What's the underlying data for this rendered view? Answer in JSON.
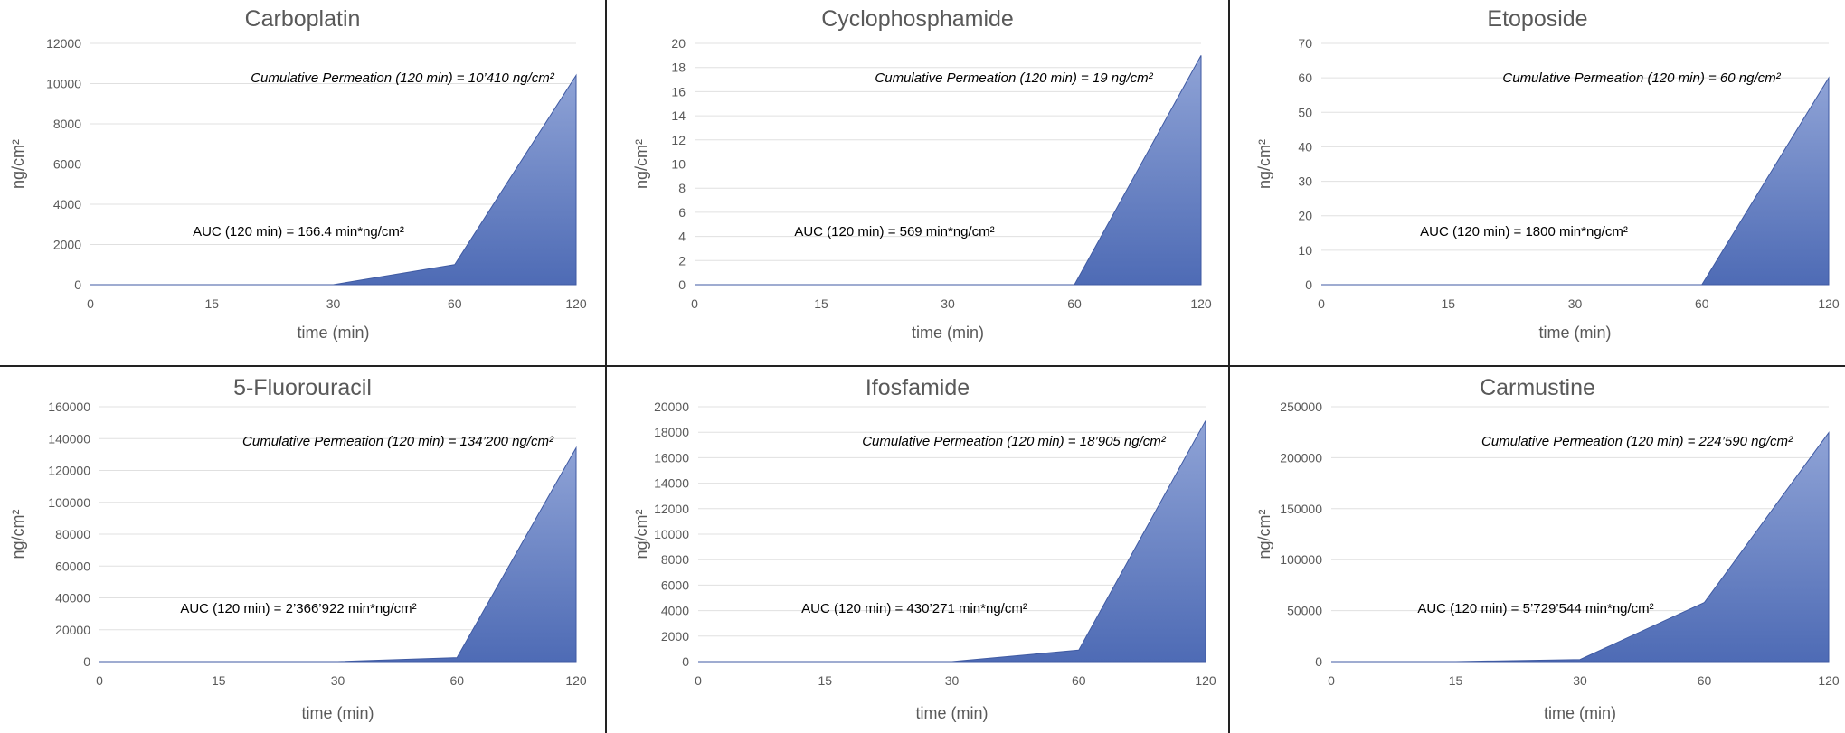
{
  "colors": {
    "area_top": "#8fa3d6",
    "area_bottom": "#4e6bb5",
    "grid": "#e0e0e0",
    "axis": "#bfbfbf",
    "text": "#595959"
  },
  "chart_data": [
    {
      "type": "area",
      "title": "Carboplatin",
      "xlabel": "time (min)",
      "ylabel": "ng/cm²",
      "categories": [
        "0",
        "15",
        "30",
        "60",
        "120"
      ],
      "values": [
        0,
        0,
        0,
        1000,
        10410
      ],
      "ylim": [
        0,
        12000
      ],
      "ytick_step": 2000,
      "grid": true,
      "cumulative_label": "Cumulative Permeation (120 min) = 10’410 ng/cm²",
      "auc_label": "AUC (120 min) = 166.4 min*ng/cm²"
    },
    {
      "type": "area",
      "title": "Cyclophosphamide",
      "xlabel": "time (min)",
      "ylabel": "ng/cm²",
      "categories": [
        "0",
        "15",
        "30",
        "60",
        "120"
      ],
      "values": [
        0,
        0,
        0,
        0,
        19
      ],
      "ylim": [
        0,
        20
      ],
      "ytick_step": 2,
      "grid": true,
      "cumulative_label": "Cumulative Permeation (120 min) = 19 ng/cm²",
      "auc_label": "AUC (120 min) = 569 min*ng/cm²"
    },
    {
      "type": "area",
      "title": "Etoposide",
      "xlabel": "time (min)",
      "ylabel": "ng/cm²",
      "categories": [
        "0",
        "15",
        "30",
        "60",
        "120"
      ],
      "values": [
        0,
        0,
        0,
        0,
        60
      ],
      "ylim": [
        0,
        70
      ],
      "ytick_step": 10,
      "grid": true,
      "cumulative_label": "Cumulative Permeation (120 min) = 60 ng/cm²",
      "auc_label": "AUC (120 min) = 1800 min*ng/cm²"
    },
    {
      "type": "area",
      "title": "5-Fluorouracil",
      "xlabel": "time (min)",
      "ylabel": "ng/cm²",
      "categories": [
        "0",
        "15",
        "30",
        "60",
        "120"
      ],
      "values": [
        0,
        0,
        0,
        2500,
        134200
      ],
      "ylim": [
        0,
        160000
      ],
      "ytick_step": 20000,
      "grid": true,
      "cumulative_label": "Cumulative Permeation (120 min) = 134’200 ng/cm²",
      "auc_label": "AUC (120 min) = 2’366’922 min*ng/cm²"
    },
    {
      "type": "area",
      "title": "Ifosfamide",
      "xlabel": "time (min)",
      "ylabel": "ng/cm²",
      "categories": [
        "0",
        "15",
        "30",
        "60",
        "120"
      ],
      "values": [
        0,
        0,
        0,
        900,
        18905
      ],
      "ylim": [
        0,
        20000
      ],
      "ytick_step": 2000,
      "grid": true,
      "cumulative_label": "Cumulative Permeation (120 min) = 18’905 ng/cm²",
      "auc_label": "AUC (120 min) = 430’271 min*ng/cm²"
    },
    {
      "type": "area",
      "title": "Carmustine",
      "xlabel": "time (min)",
      "ylabel": "ng/cm²",
      "categories": [
        "0",
        "15",
        "30",
        "60",
        "120"
      ],
      "values": [
        0,
        0,
        2000,
        58000,
        224590
      ],
      "ylim": [
        0,
        250000
      ],
      "ytick_step": 50000,
      "grid": true,
      "cumulative_label": "Cumulative Permeation (120 min) = 224’590 ng/cm²",
      "auc_label": "AUC (120 min) = 5’729’544 min*ng/cm²"
    }
  ]
}
